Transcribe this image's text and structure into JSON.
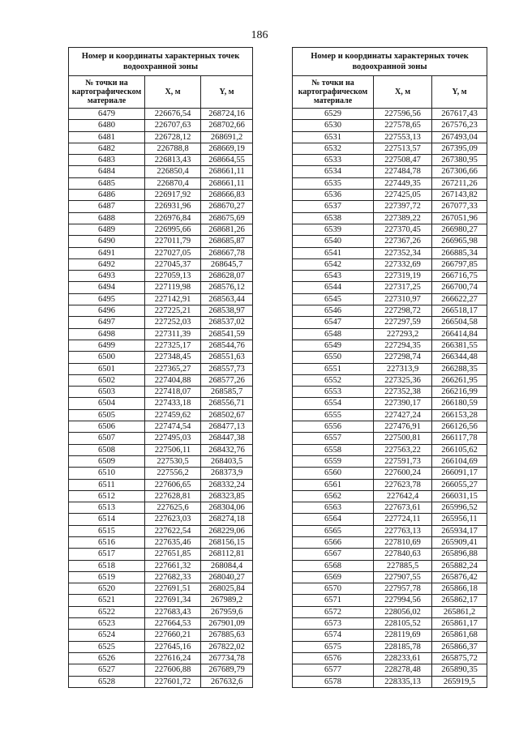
{
  "page_number": "186",
  "tables": [
    {
      "title": "Номер и координаты характерных точек водоохранной зоны",
      "headers": [
        "№ точки на картографическом материале",
        "X, м",
        "Y, м"
      ],
      "rows": [
        [
          "6479",
          "226676,54",
          "268724,16"
        ],
        [
          "6480",
          "226707,63",
          "268702,66"
        ],
        [
          "6481",
          "226728,12",
          "268691,2"
        ],
        [
          "6482",
          "226788,8",
          "268669,19"
        ],
        [
          "6483",
          "226813,43",
          "268664,55"
        ],
        [
          "6484",
          "226850,4",
          "268661,11"
        ],
        [
          "6485",
          "226870,4",
          "268661,11"
        ],
        [
          "6486",
          "226917,92",
          "268666,83"
        ],
        [
          "6487",
          "226931,96",
          "268670,27"
        ],
        [
          "6488",
          "226976,84",
          "268675,69"
        ],
        [
          "6489",
          "226995,66",
          "268681,26"
        ],
        [
          "6490",
          "227011,79",
          "268685,87"
        ],
        [
          "6491",
          "227027,05",
          "268667,78"
        ],
        [
          "6492",
          "227045,37",
          "268645,7"
        ],
        [
          "6493",
          "227059,13",
          "268628,07"
        ],
        [
          "6494",
          "227119,98",
          "268576,12"
        ],
        [
          "6495",
          "227142,91",
          "268563,44"
        ],
        [
          "6496",
          "227225,21",
          "268538,97"
        ],
        [
          "6497",
          "227252,03",
          "268537,02"
        ],
        [
          "6498",
          "227311,39",
          "268541,59"
        ],
        [
          "6499",
          "227325,17",
          "268544,76"
        ],
        [
          "6500",
          "227348,45",
          "268551,63"
        ],
        [
          "6501",
          "227365,27",
          "268557,73"
        ],
        [
          "6502",
          "227404,88",
          "268577,26"
        ],
        [
          "6503",
          "227418,07",
          "268585,7"
        ],
        [
          "6504",
          "227433,18",
          "268556,71"
        ],
        [
          "6505",
          "227459,62",
          "268502,67"
        ],
        [
          "6506",
          "227474,54",
          "268477,13"
        ],
        [
          "6507",
          "227495,03",
          "268447,38"
        ],
        [
          "6508",
          "227506,11",
          "268432,76"
        ],
        [
          "6509",
          "227530,5",
          "268403,5"
        ],
        [
          "6510",
          "227556,2",
          "268373,9"
        ],
        [
          "6511",
          "227606,65",
          "268332,24"
        ],
        [
          "6512",
          "227628,81",
          "268323,85"
        ],
        [
          "6513",
          "227625,6",
          "268304,06"
        ],
        [
          "6514",
          "227623,03",
          "268274,18"
        ],
        [
          "6515",
          "227622,54",
          "268229,06"
        ],
        [
          "6516",
          "227635,46",
          "268156,15"
        ],
        [
          "6517",
          "227651,85",
          "268112,81"
        ],
        [
          "6518",
          "227661,32",
          "268084,4"
        ],
        [
          "6519",
          "227682,33",
          "268040,27"
        ],
        [
          "6520",
          "227691,51",
          "268025,84"
        ],
        [
          "6521",
          "227691,34",
          "267989,2"
        ],
        [
          "6522",
          "227683,43",
          "267959,6"
        ],
        [
          "6523",
          "227664,53",
          "267901,09"
        ],
        [
          "6524",
          "227660,21",
          "267885,63"
        ],
        [
          "6525",
          "227645,16",
          "267822,02"
        ],
        [
          "6526",
          "227616,24",
          "267734,78"
        ],
        [
          "6527",
          "227606,88",
          "267689,79"
        ],
        [
          "6528",
          "227601,72",
          "267632,6"
        ]
      ]
    },
    {
      "title": "Номер и координаты характерных точек водоохранной зоны",
      "headers": [
        "№ точки на картографическом материале",
        "X, м",
        "Y, м"
      ],
      "rows": [
        [
          "6529",
          "227596,56",
          "267617,43"
        ],
        [
          "6530",
          "227578,65",
          "267576,23"
        ],
        [
          "6531",
          "227553,13",
          "267493,04"
        ],
        [
          "6532",
          "227513,57",
          "267395,09"
        ],
        [
          "6533",
          "227508,47",
          "267380,95"
        ],
        [
          "6534",
          "227484,78",
          "267306,66"
        ],
        [
          "6535",
          "227449,35",
          "267211,26"
        ],
        [
          "6536",
          "227425,05",
          "267143,82"
        ],
        [
          "6537",
          "227397,72",
          "267077,33"
        ],
        [
          "6538",
          "227389,22",
          "267051,96"
        ],
        [
          "6539",
          "227370,45",
          "266980,27"
        ],
        [
          "6540",
          "227367,26",
          "266965,98"
        ],
        [
          "6541",
          "227352,34",
          "266885,34"
        ],
        [
          "6542",
          "227332,69",
          "266797,85"
        ],
        [
          "6543",
          "227319,19",
          "266716,75"
        ],
        [
          "6544",
          "227317,25",
          "266700,74"
        ],
        [
          "6545",
          "227310,97",
          "266622,27"
        ],
        [
          "6546",
          "227298,72",
          "266518,17"
        ],
        [
          "6547",
          "227297,59",
          "266504,58"
        ],
        [
          "6548",
          "227293,2",
          "266414,84"
        ],
        [
          "6549",
          "227294,35",
          "266381,55"
        ],
        [
          "6550",
          "227298,74",
          "266344,48"
        ],
        [
          "6551",
          "227313,9",
          "266288,35"
        ],
        [
          "6552",
          "227325,36",
          "266261,95"
        ],
        [
          "6553",
          "227352,38",
          "266216,99"
        ],
        [
          "6554",
          "227390,17",
          "266180,59"
        ],
        [
          "6555",
          "227427,24",
          "266153,28"
        ],
        [
          "6556",
          "227476,91",
          "266126,56"
        ],
        [
          "6557",
          "227500,81",
          "266117,78"
        ],
        [
          "6558",
          "227563,22",
          "266105,62"
        ],
        [
          "6559",
          "227591,73",
          "266104,69"
        ],
        [
          "6560",
          "227600,24",
          "266091,17"
        ],
        [
          "6561",
          "227623,78",
          "266055,27"
        ],
        [
          "6562",
          "227642,4",
          "266031,15"
        ],
        [
          "6563",
          "227673,61",
          "265996,52"
        ],
        [
          "6564",
          "227724,11",
          "265956,11"
        ],
        [
          "6565",
          "227763,13",
          "265934,17"
        ],
        [
          "6566",
          "227810,69",
          "265909,41"
        ],
        [
          "6567",
          "227840,63",
          "265896,88"
        ],
        [
          "6568",
          "227885,5",
          "265882,24"
        ],
        [
          "6569",
          "227907,55",
          "265876,42"
        ],
        [
          "6570",
          "227957,78",
          "265866,18"
        ],
        [
          "6571",
          "227994,56",
          "265862,17"
        ],
        [
          "6572",
          "228056,02",
          "265861,2"
        ],
        [
          "6573",
          "228105,52",
          "265861,17"
        ],
        [
          "6574",
          "228119,69",
          "265861,68"
        ],
        [
          "6575",
          "228185,78",
          "265866,37"
        ],
        [
          "6576",
          "228233,61",
          "265875,72"
        ],
        [
          "6577",
          "228278,48",
          "265890,35"
        ],
        [
          "6578",
          "228335,13",
          "265919,5"
        ]
      ]
    }
  ]
}
